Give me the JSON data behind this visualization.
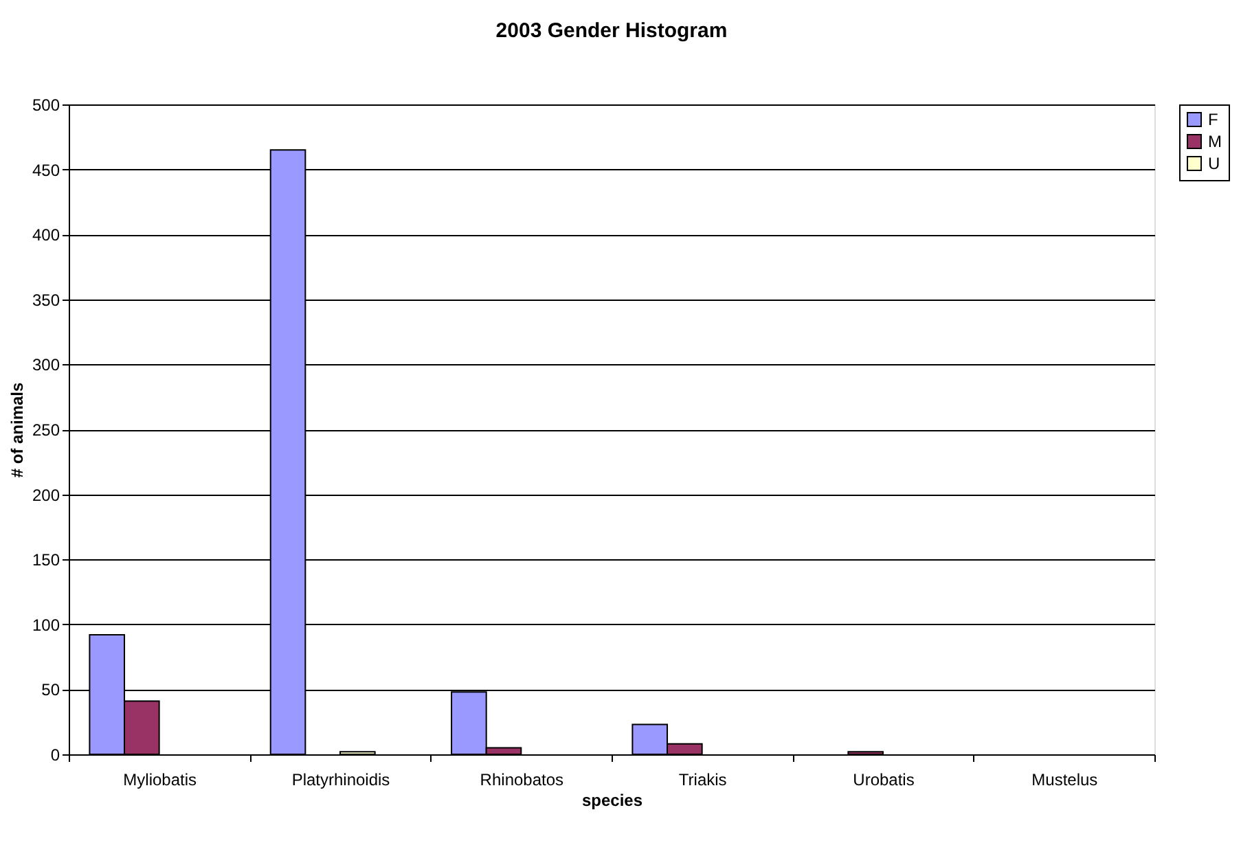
{
  "chart_data": {
    "type": "bar",
    "title": "2003 Gender Histogram",
    "xlabel": "species",
    "ylabel": "# of animals",
    "categories": [
      "Myliobatis",
      "Platyrhinoidis",
      "Rhinobatos",
      "Triakis",
      "Urobatis",
      "Mustelus"
    ],
    "series": [
      {
        "name": "F",
        "color": "#9999ff",
        "values": [
          92,
          465,
          48,
          23,
          null,
          null
        ]
      },
      {
        "name": "M",
        "color": "#993366",
        "values": [
          41,
          null,
          5,
          8,
          2,
          null
        ]
      },
      {
        "name": "U",
        "color": "#ffffcc",
        "values": [
          null,
          2,
          null,
          null,
          null,
          null
        ]
      }
    ],
    "ylim": [
      0,
      500
    ],
    "yticks": [
      0,
      50,
      100,
      150,
      200,
      250,
      300,
      350,
      400,
      450,
      500
    ],
    "grid": "y",
    "legend": "right"
  }
}
